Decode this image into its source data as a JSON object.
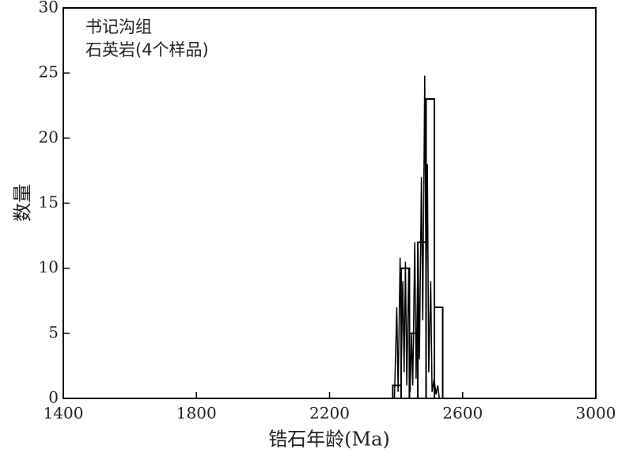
{
  "chart_data": {
    "type": "histogram",
    "annotations": [
      "书记沟组",
      "石英岩(4个样品)"
    ],
    "x_label": "锆石年龄(Ma)",
    "y_label": "数量",
    "bins": [
      2390,
      2415,
      2440,
      2465,
      2490,
      2515,
      2540
    ],
    "counts": [
      1,
      10,
      5,
      12,
      23,
      7
    ],
    "color": "#000000",
    "curve": {
      "x": [
        2380,
        2395,
        2402,
        2406,
        2412,
        2416,
        2420,
        2424,
        2428,
        2432,
        2438,
        2442,
        2446,
        2450,
        2456,
        2460,
        2466,
        2470,
        2476,
        2480,
        2486,
        2490,
        2494,
        2498,
        2504,
        2508,
        2514,
        2520,
        2525,
        2530,
        2540,
        2560
      ],
      "values": [
        0,
        0,
        7,
        0.5,
        10.8,
        3,
        9,
        2,
        10.5,
        1,
        10,
        0.5,
        5,
        1,
        12,
        1.5,
        11.5,
        3,
        17,
        6,
        24.8,
        8,
        18,
        2,
        9,
        0.5,
        1.5,
        0.3,
        1,
        0,
        0,
        0
      ]
    },
    "xlim": [
      1400,
      3000
    ],
    "xticks": [
      1400,
      1800,
      2200,
      2600,
      3000
    ],
    "ylim": [
      0,
      30
    ],
    "yticks": [
      0,
      5,
      10,
      15,
      20,
      25,
      30
    ]
  }
}
